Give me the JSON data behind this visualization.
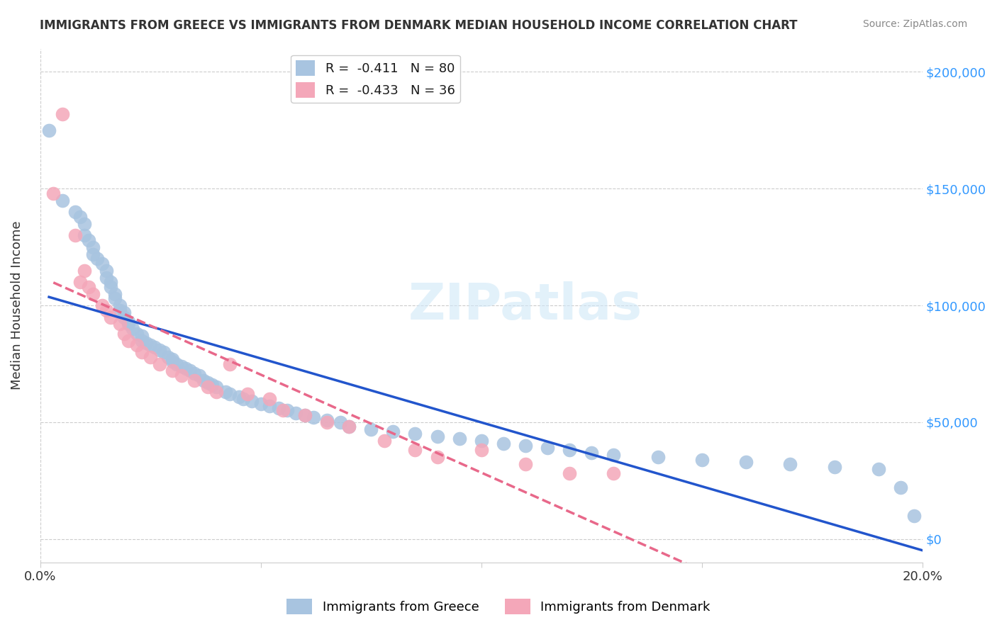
{
  "title": "IMMIGRANTS FROM GREECE VS IMMIGRANTS FROM DENMARK MEDIAN HOUSEHOLD INCOME CORRELATION CHART",
  "source": "Source: ZipAtlas.com",
  "xlabel_bottom": "",
  "ylabel": "Median Household Income",
  "xlim": [
    0.0,
    0.2
  ],
  "ylim": [
    -10000,
    210000
  ],
  "xticks": [
    0.0,
    0.05,
    0.1,
    0.15,
    0.2
  ],
  "xtick_labels": [
    "0.0%",
    "",
    "",
    "",
    "20.0%"
  ],
  "yticks": [
    0,
    50000,
    100000,
    150000,
    200000
  ],
  "ytick_labels_right": [
    "$0",
    "$50,000",
    "$100,000",
    "$150,000",
    "$200,000"
  ],
  "greece_color": "#a8c4e0",
  "denmark_color": "#f4a7b9",
  "greece_line_color": "#2255cc",
  "denmark_line_color": "#e8688a",
  "greece_R": -0.411,
  "greece_N": 80,
  "denmark_R": -0.433,
  "denmark_N": 36,
  "greece_scatter_x": [
    0.002,
    0.005,
    0.008,
    0.009,
    0.01,
    0.01,
    0.011,
    0.012,
    0.012,
    0.013,
    0.014,
    0.015,
    0.015,
    0.016,
    0.016,
    0.017,
    0.017,
    0.018,
    0.018,
    0.019,
    0.019,
    0.02,
    0.02,
    0.021,
    0.022,
    0.023,
    0.023,
    0.024,
    0.025,
    0.026,
    0.027,
    0.028,
    0.029,
    0.03,
    0.03,
    0.031,
    0.032,
    0.033,
    0.034,
    0.035,
    0.036,
    0.037,
    0.038,
    0.039,
    0.04,
    0.042,
    0.043,
    0.045,
    0.046,
    0.048,
    0.05,
    0.052,
    0.054,
    0.056,
    0.058,
    0.06,
    0.062,
    0.065,
    0.068,
    0.07,
    0.075,
    0.08,
    0.085,
    0.09,
    0.095,
    0.1,
    0.105,
    0.11,
    0.115,
    0.12,
    0.125,
    0.13,
    0.14,
    0.15,
    0.16,
    0.17,
    0.18,
    0.19,
    0.195,
    0.198
  ],
  "greece_scatter_y": [
    175000,
    145000,
    140000,
    138000,
    135000,
    130000,
    128000,
    125000,
    122000,
    120000,
    118000,
    115000,
    112000,
    110000,
    108000,
    105000,
    103000,
    100000,
    98000,
    97000,
    95000,
    93000,
    92000,
    90000,
    88000,
    87000,
    85000,
    84000,
    83000,
    82000,
    81000,
    80000,
    78000,
    77000,
    76000,
    75000,
    74000,
    73000,
    72000,
    71000,
    70000,
    68000,
    67000,
    66000,
    65000,
    63000,
    62000,
    61000,
    60000,
    59000,
    58000,
    57000,
    56000,
    55000,
    54000,
    53000,
    52000,
    51000,
    50000,
    48000,
    47000,
    46000,
    45000,
    44000,
    43000,
    42000,
    41000,
    40000,
    39000,
    38000,
    37000,
    36000,
    35000,
    34000,
    33000,
    32000,
    31000,
    30000,
    22000,
    10000
  ],
  "denmark_scatter_x": [
    0.003,
    0.005,
    0.008,
    0.009,
    0.01,
    0.011,
    0.012,
    0.014,
    0.015,
    0.016,
    0.018,
    0.019,
    0.02,
    0.022,
    0.023,
    0.025,
    0.027,
    0.03,
    0.032,
    0.035,
    0.038,
    0.04,
    0.043,
    0.047,
    0.052,
    0.055,
    0.06,
    0.065,
    0.07,
    0.078,
    0.085,
    0.09,
    0.1,
    0.11,
    0.12,
    0.13
  ],
  "denmark_scatter_y": [
    148000,
    182000,
    130000,
    110000,
    115000,
    108000,
    105000,
    100000,
    98000,
    95000,
    92000,
    88000,
    85000,
    83000,
    80000,
    78000,
    75000,
    72000,
    70000,
    68000,
    65000,
    63000,
    75000,
    62000,
    60000,
    55000,
    53000,
    50000,
    48000,
    42000,
    38000,
    35000,
    38000,
    32000,
    28000,
    28000
  ],
  "watermark": "ZIPatlas",
  "legend_label_greece": "Immigrants from Greece",
  "legend_label_denmark": "Immigrants from Denmark"
}
